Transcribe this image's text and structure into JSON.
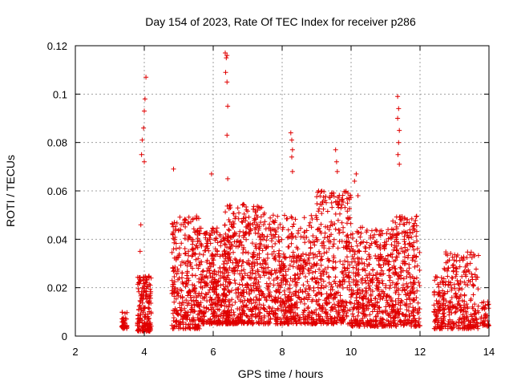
{
  "chart_data": {
    "type": "scatter",
    "title": "Day 154 of 2023, Rate Of TEC Index for receiver p286",
    "xlabel": "GPS time / hours",
    "ylabel": "ROTI / TECUs",
    "xlim": [
      2,
      14
    ],
    "ylim": [
      0,
      0.12
    ],
    "x_ticks": [
      2,
      4,
      6,
      8,
      10,
      12,
      14
    ],
    "y_ticks": [
      0,
      0.02,
      0.04,
      0.06,
      0.08,
      0.1,
      0.12
    ],
    "x_tick_labels": [
      "2",
      "4",
      "6",
      "8",
      "10",
      "12",
      "14"
    ],
    "y_tick_labels": [
      "0",
      "0.02",
      "0.04",
      "0.06",
      "0.08",
      "0.1",
      "0.12"
    ],
    "grid": true,
    "marker": "+",
    "color": "#e00000",
    "series": [
      {
        "name": "ROTI",
        "clusters": [
          {
            "x": [
              3.35,
              3.5
            ],
            "y": [
              0.003,
              0.01
            ],
            "n": 40
          },
          {
            "x": [
              3.8,
              4.2
            ],
            "y": [
              0.002,
              0.025
            ],
            "n": 180
          },
          {
            "x": [
              4.8,
              5.6
            ],
            "y": [
              0.003,
              0.05
            ],
            "n": 320
          },
          {
            "x": [
              5.6,
              6.5
            ],
            "y": [
              0.005,
              0.045
            ],
            "n": 360
          },
          {
            "x": [
              6.3,
              7.5
            ],
            "y": [
              0.005,
              0.055
            ],
            "n": 480
          },
          {
            "x": [
              7.5,
              9.0
            ],
            "y": [
              0.005,
              0.05
            ],
            "n": 520
          },
          {
            "x": [
              9.0,
              10.0
            ],
            "y": [
              0.005,
              0.06
            ],
            "n": 380
          },
          {
            "x": [
              10.0,
              11.2
            ],
            "y": [
              0.004,
              0.045
            ],
            "n": 420
          },
          {
            "x": [
              11.2,
              12.0
            ],
            "y": [
              0.004,
              0.05
            ],
            "n": 300
          },
          {
            "x": [
              12.4,
              12.7
            ],
            "y": [
              0.003,
              0.025
            ],
            "n": 90
          },
          {
            "x": [
              12.7,
              13.7
            ],
            "y": [
              0.003,
              0.035
            ],
            "n": 260
          },
          {
            "x": [
              13.75,
              14.0
            ],
            "y": [
              0.004,
              0.015
            ],
            "n": 40
          }
        ],
        "peaks": [
          {
            "x": 3.92,
            "y": 0.075
          },
          {
            "x": 3.94,
            "y": 0.081
          },
          {
            "x": 3.9,
            "y": 0.046
          },
          {
            "x": 4.02,
            "y": 0.098
          },
          {
            "x": 4.05,
            "y": 0.107
          },
          {
            "x": 4.0,
            "y": 0.093
          },
          {
            "x": 3.98,
            "y": 0.086
          },
          {
            "x": 4.0,
            "y": 0.072
          },
          {
            "x": 3.88,
            "y": 0.035
          },
          {
            "x": 4.85,
            "y": 0.069
          },
          {
            "x": 5.95,
            "y": 0.067
          },
          {
            "x": 6.35,
            "y": 0.117
          },
          {
            "x": 6.38,
            "y": 0.115
          },
          {
            "x": 6.4,
            "y": 0.116
          },
          {
            "x": 6.36,
            "y": 0.109
          },
          {
            "x": 6.4,
            "y": 0.105
          },
          {
            "x": 6.42,
            "y": 0.095
          },
          {
            "x": 6.4,
            "y": 0.083
          },
          {
            "x": 6.42,
            "y": 0.065
          },
          {
            "x": 8.25,
            "y": 0.084
          },
          {
            "x": 8.28,
            "y": 0.081
          },
          {
            "x": 8.3,
            "y": 0.077
          },
          {
            "x": 8.28,
            "y": 0.074
          },
          {
            "x": 8.3,
            "y": 0.068
          },
          {
            "x": 9.55,
            "y": 0.077
          },
          {
            "x": 9.58,
            "y": 0.072
          },
          {
            "x": 9.6,
            "y": 0.068
          },
          {
            "x": 10.15,
            "y": 0.067
          },
          {
            "x": 10.1,
            "y": 0.064
          },
          {
            "x": 10.2,
            "y": 0.058
          },
          {
            "x": 11.35,
            "y": 0.099
          },
          {
            "x": 11.38,
            "y": 0.094
          },
          {
            "x": 11.35,
            "y": 0.09
          },
          {
            "x": 11.4,
            "y": 0.085
          },
          {
            "x": 11.38,
            "y": 0.08
          },
          {
            "x": 11.36,
            "y": 0.075
          },
          {
            "x": 11.4,
            "y": 0.071
          }
        ]
      }
    ]
  }
}
